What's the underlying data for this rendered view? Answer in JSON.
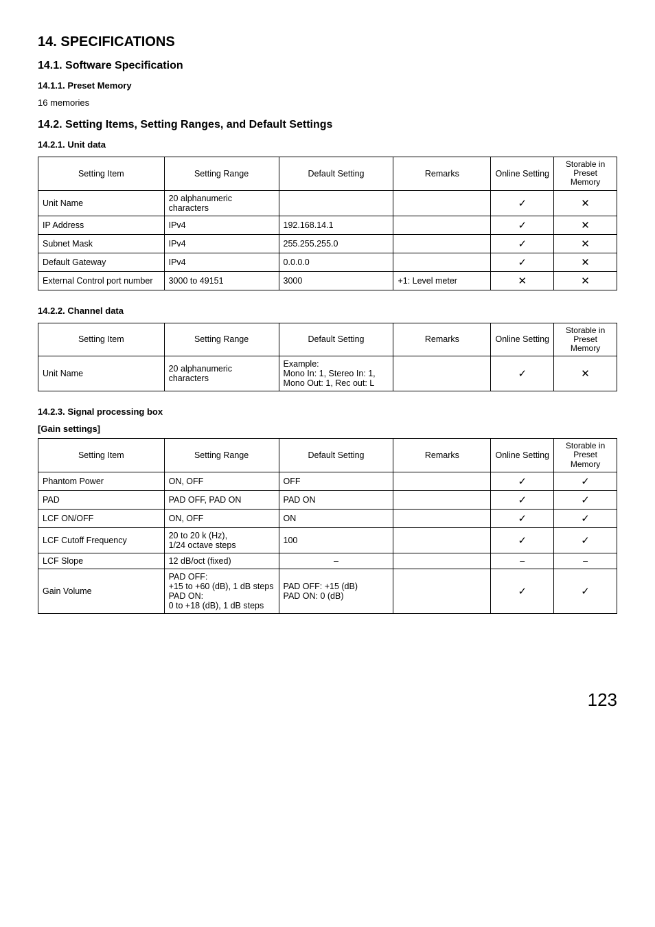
{
  "page": {
    "title": "14. SPECIFICATIONS",
    "pageNumber": "123"
  },
  "s14_1": {
    "heading": "14.1. Software Specification",
    "s1": {
      "heading": "14.1.1. Preset Memory",
      "body": "16 memories"
    }
  },
  "s14_2": {
    "heading": "14.2. Setting Items, Setting Ranges, and Default Settings",
    "headers": {
      "item": "Setting Item",
      "range": "Setting Range",
      "default": "Default Setting",
      "remarks": "Remarks",
      "online": "Online Setting",
      "preset": "Storable in Preset Memory"
    },
    "s1": {
      "heading": "14.2.1. Unit data",
      "rows": [
        {
          "item": "Unit Name",
          "range": "20 alphanumeric characters",
          "default": "",
          "remarks": "",
          "online": "check",
          "preset": "cross"
        },
        {
          "item": "IP Address",
          "range": "IPv4",
          "default": "192.168.14.1",
          "remarks": "",
          "online": "check",
          "preset": "cross"
        },
        {
          "item": "Subnet Mask",
          "range": "IPv4",
          "default": "255.255.255.0",
          "remarks": "",
          "online": "check",
          "preset": "cross"
        },
        {
          "item": "Default Gateway",
          "range": "IPv4",
          "default": "0.0.0.0",
          "remarks": "",
          "online": "check",
          "preset": "cross"
        },
        {
          "item": "External Control port number",
          "range": "3000 to 49151",
          "default": "3000",
          "remarks": "+1: Level meter",
          "online": "cross",
          "preset": "cross"
        }
      ]
    },
    "s2": {
      "heading": "14.2.2. Channel data",
      "rows": [
        {
          "item": "Unit Name",
          "range": "20 alphanumeric characters",
          "default": "Example:\nMono In: 1, Stereo In: 1, Mono Out: 1, Rec out: L",
          "remarks": "",
          "online": "check",
          "preset": "cross"
        }
      ]
    },
    "s3": {
      "heading": "14.2.3. Signal processing box",
      "sub": "[Gain settings]",
      "rows": [
        {
          "item": "Phantom Power",
          "range": "ON, OFF",
          "default": "OFF",
          "remarks": "",
          "online": "check",
          "preset": "check"
        },
        {
          "item": "PAD",
          "range": "PAD OFF, PAD ON",
          "default": "PAD ON",
          "remarks": "",
          "online": "check",
          "preset": "check"
        },
        {
          "item": "LCF ON/OFF",
          "range": "ON, OFF",
          "default": "ON",
          "remarks": "",
          "online": "check",
          "preset": "check"
        },
        {
          "item": "LCF Cutoff Frequency",
          "range": "20 to 20 k (Hz),\n1/24 octave steps",
          "default": "100",
          "remarks": "",
          "online": "check",
          "preset": "check"
        },
        {
          "item": "LCF Slope",
          "range": "12 dB/oct (fixed)",
          "default": "–",
          "remarks": "",
          "online": "dash",
          "preset": "dash"
        },
        {
          "item": "Gain Volume",
          "range": "PAD OFF:\n+15 to +60 (dB), 1 dB steps\nPAD ON:\n0 to +18 (dB), 1 dB steps",
          "default": "PAD OFF: +15 (dB)\nPAD ON:   0 (dB)",
          "remarks": "",
          "online": "check",
          "preset": "check"
        }
      ]
    }
  }
}
